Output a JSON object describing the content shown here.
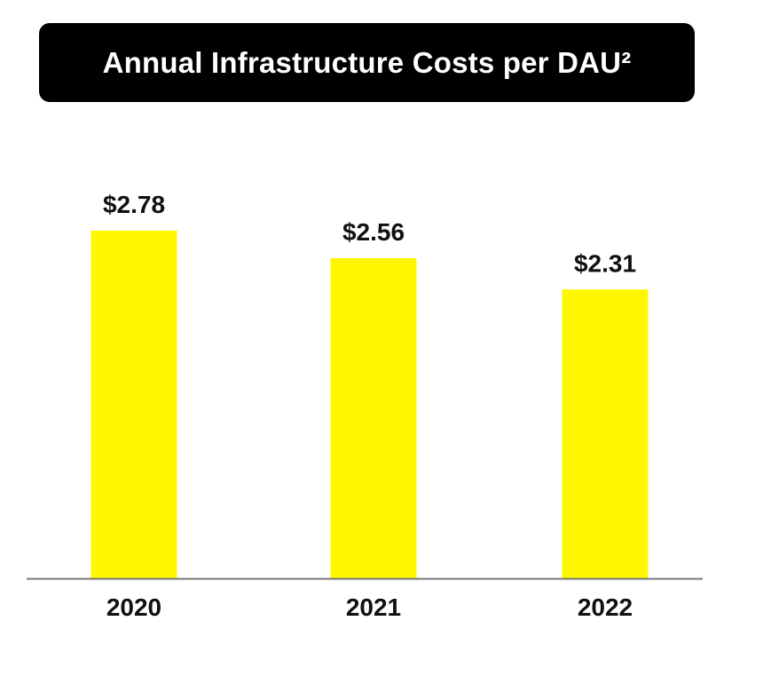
{
  "chart_data": {
    "type": "bar",
    "title": "Annual Infrastructure Costs per DAU²",
    "categories": [
      "2020",
      "2021",
      "2022"
    ],
    "values": [
      2.78,
      2.56,
      2.31
    ],
    "value_labels": [
      "$2.78",
      "$2.56",
      "$2.31"
    ],
    "xlabel": "",
    "ylabel": "",
    "ylim": [
      0,
      3.0
    ],
    "grid": false,
    "legend": "none",
    "colors": {
      "bar": "#FFF700",
      "axis": "#777777",
      "title_bg": "#000000",
      "title_text": "#FFFFFF"
    }
  }
}
